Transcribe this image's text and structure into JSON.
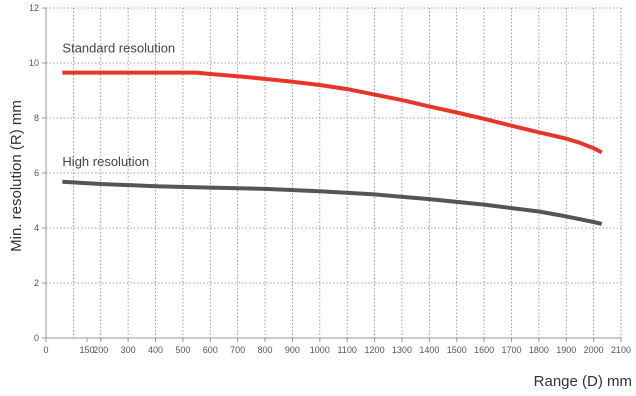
{
  "chart_data": {
    "type": "line",
    "xlabel": "Range (D) mm",
    "ylabel": "Min. resolution (R) mm",
    "xlim": [
      0,
      2100
    ],
    "ylim": [
      0,
      12
    ],
    "x_ticks": [
      0,
      150,
      200,
      300,
      400,
      500,
      600,
      700,
      800,
      900,
      1000,
      1100,
      1200,
      1300,
      1400,
      1500,
      1600,
      1700,
      1800,
      1900,
      2000,
      2100
    ],
    "x_grid": [
      100,
      200,
      300,
      400,
      500,
      600,
      700,
      800,
      900,
      1000,
      1100,
      1200,
      1300,
      1400,
      1500,
      1600,
      1700,
      1800,
      1900,
      2000,
      2100
    ],
    "y_ticks": [
      0,
      2,
      4,
      6,
      8,
      10,
      12
    ],
    "grid": true,
    "series": [
      {
        "name": "Standard resolution",
        "color": "#e8352a",
        "x": [
          60,
          150,
          200,
          300,
          400,
          500,
          550,
          600,
          700,
          800,
          900,
          1000,
          1100,
          1200,
          1300,
          1400,
          1500,
          1600,
          1700,
          1800,
          1900,
          1950,
          2000,
          2030
        ],
        "y": [
          9.65,
          9.65,
          9.65,
          9.65,
          9.65,
          9.65,
          9.65,
          9.6,
          9.52,
          9.42,
          9.32,
          9.2,
          9.05,
          8.85,
          8.65,
          8.42,
          8.2,
          7.97,
          7.72,
          7.48,
          7.25,
          7.1,
          6.9,
          6.75
        ]
      },
      {
        "name": "High resolution",
        "color": "#555555",
        "x": [
          60,
          200,
          400,
          600,
          800,
          1000,
          1200,
          1400,
          1600,
          1800,
          1900,
          2000,
          2030
        ],
        "y": [
          5.68,
          5.6,
          5.52,
          5.47,
          5.42,
          5.34,
          5.22,
          5.05,
          4.85,
          4.6,
          4.42,
          4.22,
          4.15
        ]
      }
    ]
  }
}
